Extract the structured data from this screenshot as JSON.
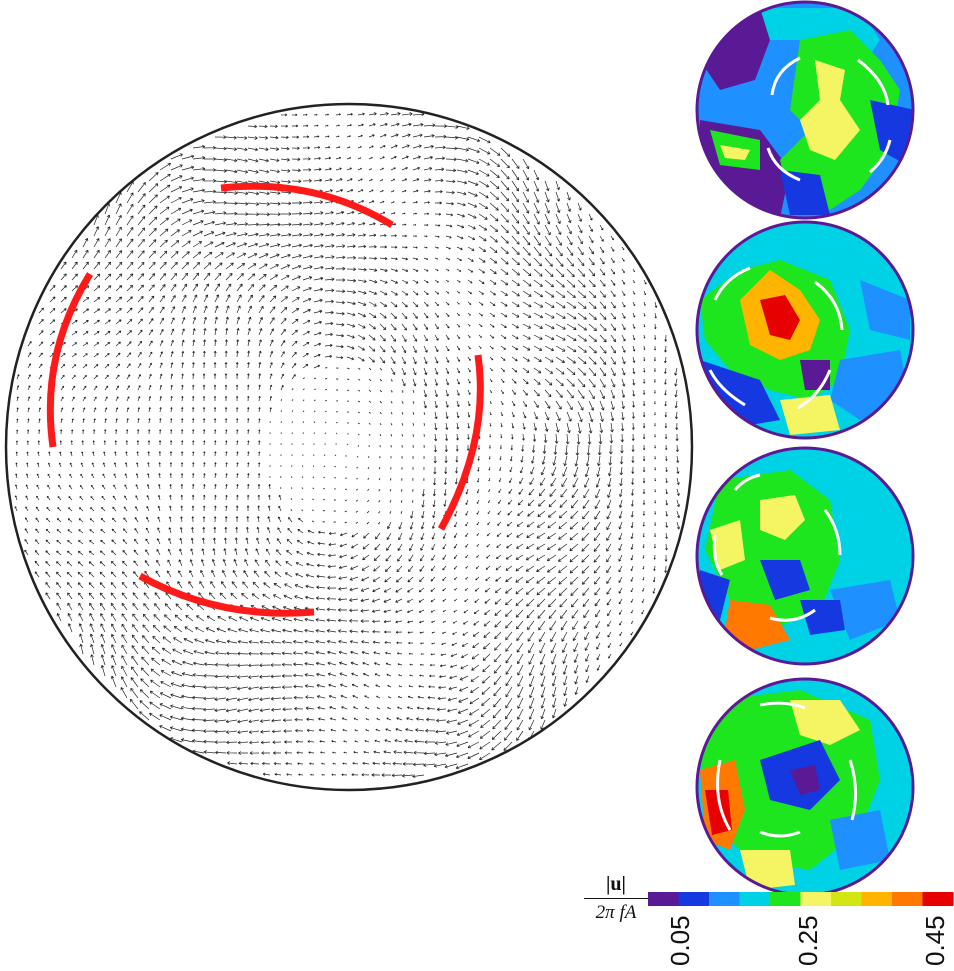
{
  "figure": {
    "colorbar": {
      "numerator": "|u|",
      "denominator": "2π fA",
      "tick_labels": [
        "0.05",
        "0.25",
        "0.45"
      ],
      "colors": [
        "#5a1a96",
        "#1638e0",
        "#1e90ff",
        "#00d2e6",
        "#1ee61e",
        "#f5f564",
        "#d2e614",
        "#ffb400",
        "#ff7800",
        "#e60000"
      ]
    },
    "main_view": {
      "blade_color": "#ff1a1a",
      "boundary_color": "#222222",
      "vector_color": "#222222"
    },
    "snapshots": [
      {
        "name": "snapshot-1"
      },
      {
        "name": "snapshot-2"
      },
      {
        "name": "snapshot-3"
      },
      {
        "name": "snapshot-4"
      }
    ]
  }
}
